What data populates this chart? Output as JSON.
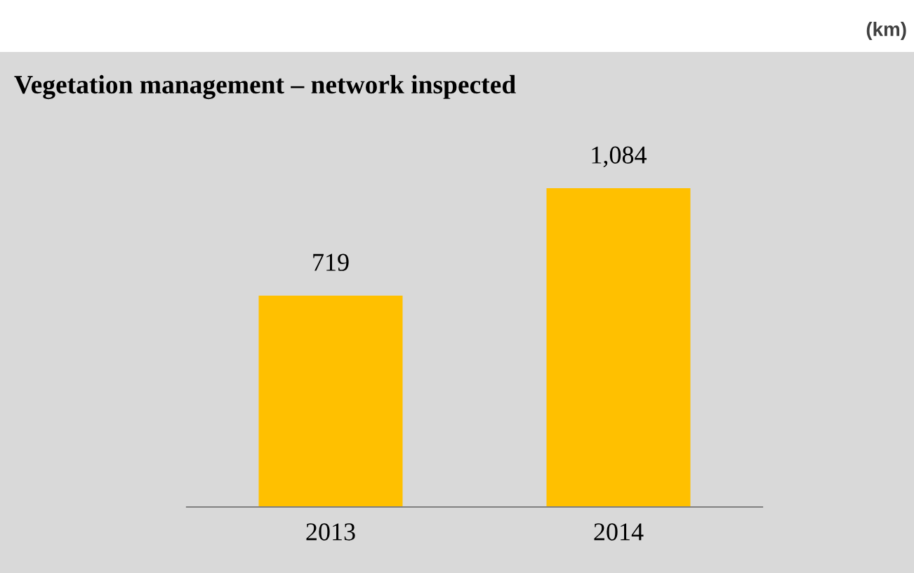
{
  "chart_data": {
    "type": "bar",
    "title": "Vegetation management – network inspected",
    "annotations": [
      "(km)"
    ],
    "categories": [
      "2013",
      "2014"
    ],
    "values": [
      719,
      1084
    ],
    "color": "#ffc000",
    "value_labels": [
      "719",
      "1,084"
    ],
    "grid": false,
    "legend": false
  }
}
